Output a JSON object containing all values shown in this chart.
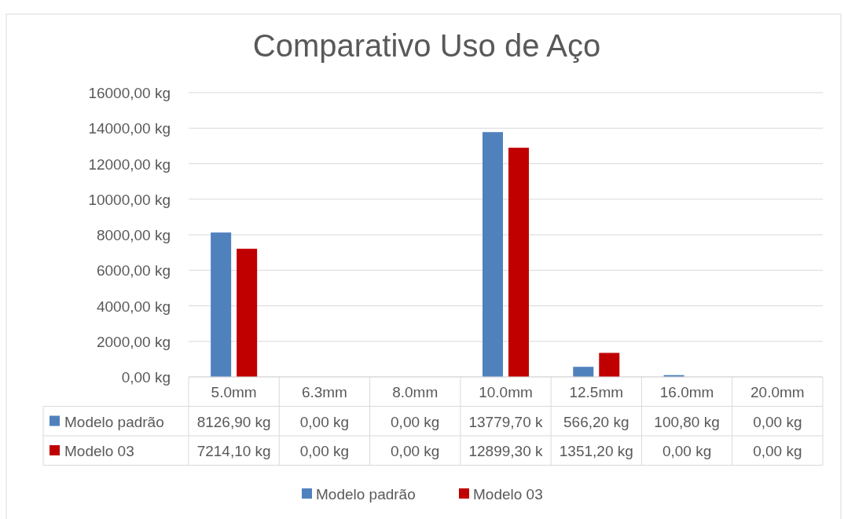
{
  "chart_data": {
    "type": "bar",
    "title": "Comparativo Uso de Aço",
    "categories": [
      "5.0mm",
      "6.3mm",
      "8.0mm",
      "10.0mm",
      "12.5mm",
      "16.0mm",
      "20.0mm"
    ],
    "series": [
      {
        "name": "Modelo padrão",
        "color": "#4f81bd",
        "values": [
          8126.9,
          0,
          0,
          13779.7,
          566.2,
          100.8,
          0
        ],
        "value_labels": [
          "8126,90 kg",
          "0,00 kg",
          "0,00 kg",
          "13779,70 k",
          "566,20 kg",
          "100,80 kg",
          "0,00 kg"
        ]
      },
      {
        "name": "Modelo 03",
        "color": "#c00000",
        "values": [
          7214.1,
          0,
          0,
          12899.3,
          1351.2,
          0,
          0
        ],
        "value_labels": [
          "7214,10 kg",
          "0,00 kg",
          "0,00 kg",
          "12899,30 k",
          "1351,20 kg",
          "0,00 kg",
          "0,00 kg"
        ]
      }
    ],
    "ylim": [
      0,
      16000
    ],
    "yticks": [
      {
        "value": 0,
        "label": "0,00 kg"
      },
      {
        "value": 2000,
        "label": "2000,00 kg"
      },
      {
        "value": 4000,
        "label": "4000,00 kg"
      },
      {
        "value": 6000,
        "label": "6000,00 kg"
      },
      {
        "value": 8000,
        "label": "8000,00 kg"
      },
      {
        "value": 10000,
        "label": "10000,00 kg"
      },
      {
        "value": 12000,
        "label": "12000,00 kg"
      },
      {
        "value": 14000,
        "label": "14000,00 kg"
      },
      {
        "value": 16000,
        "label": "16000,00 kg"
      }
    ],
    "grid": "y",
    "legend": "bottom"
  }
}
